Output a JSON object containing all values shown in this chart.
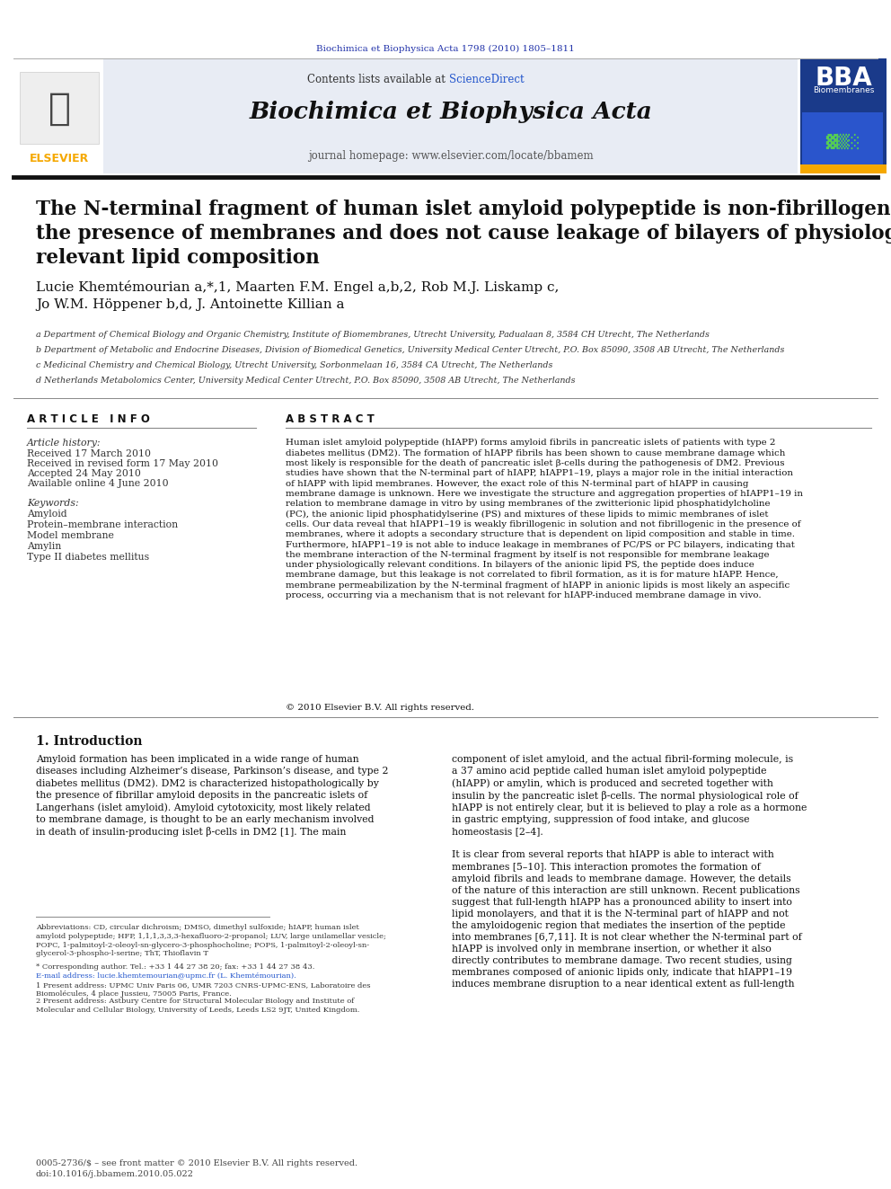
{
  "background_color": "#ffffff",
  "top_journal_line": "Biochimica et Biophysica Acta 1798 (2010) 1805–1811",
  "top_journal_color": "#2233aa",
  "header_bg": "#e8eaf0",
  "header_journal_name": "Biochimica et Biophysica Acta",
  "header_contents_text": "Contents lists available at ",
  "header_sciencedirect": "ScienceDirect",
  "header_sciencedirect_color": "#2255cc",
  "header_homepage_text": "journal homepage: www.elsevier.com/locate/bbamem",
  "elsevier_orange": "#f5a800",
  "elsevier_text_color": "#f5a800",
  "bba_bg": "#1a3a8a",
  "separator_color": "#222222",
  "article_title": "The N-terminal fragment of human islet amyloid polypeptide is non-fibrillogenic in\nthe presence of membranes and does not cause leakage of bilayers of physiologically\nrelevant lipid composition",
  "authors": "Lucie Khemtémourian a,*,1, Maarten F.M. Engel a,b,2, Rob M.J. Liskamp c,\nJo W.M. Höppener b,d, J. Antoinette Killian a",
  "affil_a": "a Department of Chemical Biology and Organic Chemistry, Institute of Biomembranes, Utrecht University, Padualaan 8, 3584 CH Utrecht, The Netherlands",
  "affil_b": "b Department of Metabolic and Endocrine Diseases, Division of Biomedical Genetics, University Medical Center Utrecht, P.O. Box 85090, 3508 AB Utrecht, The Netherlands",
  "affil_c": "c Medicinal Chemistry and Chemical Biology, Utrecht University, Sorbonmelaan 16, 3584 CA Utrecht, The Netherlands",
  "affil_d": "d Netherlands Metabolomics Center, University Medical Center Utrecht, P.O. Box 85090, 3508 AB Utrecht, The Netherlands",
  "article_info_title": "A R T I C L E   I N F O",
  "abstract_title": "A B S T R A C T",
  "article_history_label": "Article history:",
  "received": "Received 17 March 2010",
  "revised": "Received in revised form 17 May 2010",
  "accepted": "Accepted 24 May 2010",
  "available": "Available online 4 June 2010",
  "keywords_label": "Keywords:",
  "keyword1": "Amyloid",
  "keyword2": "Protein–membrane interaction",
  "keyword3": "Model membrane",
  "keyword4": "Amylin",
  "keyword5": "Type II diabetes mellitus",
  "abstract_text": "Human islet amyloid polypeptide (hIAPP) forms amyloid fibrils in pancreatic islets of patients with type 2\ndiabetes mellitus (DM2). The formation of hIAPP fibrils has been shown to cause membrane damage which\nmost likely is responsible for the death of pancreatic islet β-cells during the pathogenesis of DM2. Previous\nstudies have shown that the N-terminal part of hIAPP, hIAPP1–19, plays a major role in the initial interaction\nof hIAPP with lipid membranes. However, the exact role of this N-terminal part of hIAPP in causing\nmembrane damage is unknown. Here we investigate the structure and aggregation properties of hIAPP1–19 in\nrelation to membrane damage in vitro by using membranes of the zwitterionic lipid phosphatidylcholine\n(PC), the anionic lipid phosphatidylserine (PS) and mixtures of these lipids to mimic membranes of islet\ncells. Our data reveal that hIAPP1–19 is weakly fibrillogenic in solution and not fibrillogenic in the presence of\nmembranes, where it adopts a secondary structure that is dependent on lipid composition and stable in time.\nFurthermore, hIAPP1–19 is not able to induce leakage in membranes of PC/PS or PC bilayers, indicating that\nthe membrane interaction of the N-terminal fragment by itself is not responsible for membrane leakage\nunder physiologically relevant conditions. In bilayers of the anionic lipid PS, the peptide does induce\nmembrane damage, but this leakage is not correlated to fibril formation, as it is for mature hIAPP. Hence,\nmembrane permeabilization by the N-terminal fragment of hIAPP in anionic lipids is most likely an aspecific\nprocess, occurring via a mechanism that is not relevant for hIAPP-induced membrane damage in vivo.",
  "copyright": "© 2010 Elsevier B.V. All rights reserved.",
  "intro_title": "1. Introduction",
  "intro_text_left": "Amyloid formation has been implicated in a wide range of human\ndiseases including Alzheimer’s disease, Parkinson’s disease, and type 2\ndiabetes mellitus (DM2). DM2 is characterized histopathologically by\nthe presence of fibrillar amyloid deposits in the pancreatic islets of\nLangerhans (islet amyloid). Amyloid cytotoxicity, most likely related\nto membrane damage, is thought to be an early mechanism involved\nin death of insulin-producing islet β-cells in DM2 [1]. The main",
  "intro_text_right": "component of islet amyloid, and the actual fibril-forming molecule, is\na 37 amino acid peptide called human islet amyloid polypeptide\n(hIAPP) or amylin, which is produced and secreted together with\ninsulin by the pancreatic islet β-cells. The normal physiological role of\nhIAPP is not entirely clear, but it is believed to play a role as a hormone\nin gastric emptying, suppression of food intake, and glucose\nhomeostasis [2–4].\n\nIt is clear from several reports that hIAPP is able to interact with\nmembranes [5–10]. This interaction promotes the formation of\namyloid fibrils and leads to membrane damage. However, the details\nof the nature of this interaction are still unknown. Recent publications\nsuggest that full-length hIAPP has a pronounced ability to insert into\nlipid monolayers, and that it is the N-terminal part of hIAPP and not\nthe amyloidogenic region that mediates the insertion of the peptide\ninto membranes [6,7,11]. It is not clear whether the N-terminal part of\nhIAPP is involved only in membrane insertion, or whether it also\ndirectly contributes to membrane damage. Two recent studies, using\nmembranes composed of anionic lipids only, indicate that hIAPP1–19\ninduces membrane disruption to a near identical extent as full-length",
  "footnote_abbrev": "Abbreviations: CD, circular dichroism; DMSO, dimethyl sulfoxide; hIAPP, human islet\namyloid polypeptide; HFP, 1,1,1,3,3,3-hexafluoro-2-propanol; LUV, large unilamellar vesicle;\nPOPC, 1-palmitoyl-2-oleoyl-sn-glycero-3-phosphocholine; POPS, 1-palmitoyl-2-oleoyl-sn-\nglycerol-3-phospho-l-serine; ThT, Thioflavin T",
  "footnote_corr": "* Corresponding author. Tel.: +33 1 44 27 38 20; fax: +33 1 44 27 38 43.",
  "footnote_email": "E-mail address: lucie.khemtemourian@upmc.fr (L. Khemtémourian).",
  "footnote_1": "1 Present address: UPMC Univ Paris 06, UMR 7203 CNRS-UPMC-ENS, Laboratoire des\nBiomolécules, 4 place Jussieu, 75005 Paris, France.",
  "footnote_2": "2 Present address: Astbury Centre for Structural Molecular Biology and Institute of\nMolecular and Cellular Biology, University of Leeds, Leeds LS2 9JT, United Kingdom.",
  "bottom_text1": "0005-2736/$ – see front matter © 2010 Elsevier B.V. All rights reserved.",
  "bottom_text2": "doi:10.1016/j.bbamem.2010.05.022"
}
